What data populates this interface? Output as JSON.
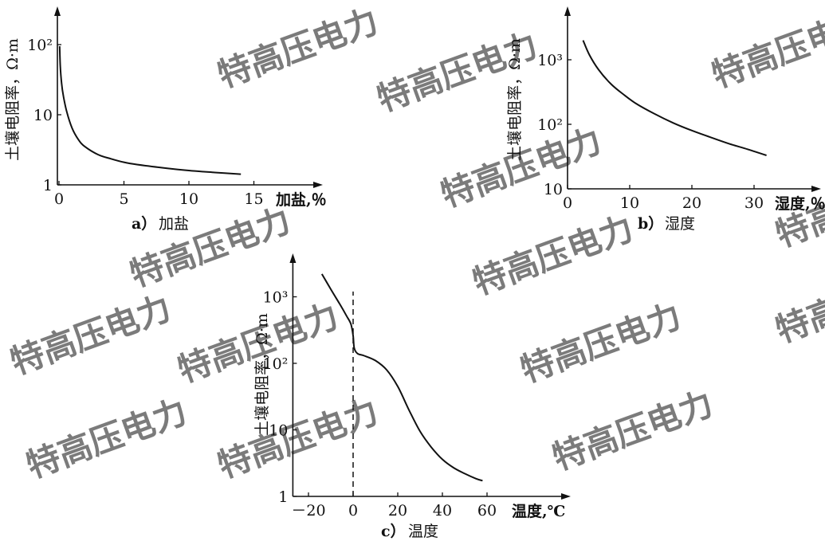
{
  "watermark": "特高压电力",
  "chart_data": [
    {
      "type": "line",
      "caption_letter": "a）",
      "caption_text": "加盐",
      "xlabel": "加盐,％",
      "ylabel": "土壤电阻率，Ω·m",
      "xlim": [
        0,
        15
      ],
      "ylim": [
        1,
        200
      ],
      "yscale": "log",
      "grid": false,
      "xticks": [
        0,
        5,
        10,
        15
      ],
      "xtick_labels": [
        "0",
        "5",
        "10",
        "15"
      ],
      "yticks": [
        1,
        10,
        100
      ],
      "ytick_labels": [
        "1",
        "10",
        "10²"
      ],
      "series": [
        {
          "x": [
            0.05,
            0.1,
            0.2,
            0.35,
            0.6,
            1,
            1.5,
            2,
            3,
            4,
            5,
            6,
            8,
            10,
            12,
            14
          ],
          "y": [
            95,
            50,
            28,
            18,
            11,
            6.5,
            4.4,
            3.5,
            2.7,
            2.35,
            2.1,
            1.95,
            1.75,
            1.6,
            1.5,
            1.42
          ]
        }
      ]
    },
    {
      "type": "line",
      "caption_letter": "b）",
      "caption_text": "湿度",
      "xlabel": "湿度,％",
      "ylabel": "土壤电阻率，Ω·m",
      "xlim": [
        0,
        40
      ],
      "ylim": [
        10,
        2500
      ],
      "yscale": "log",
      "grid": false,
      "xticks": [
        0,
        10,
        20,
        30
      ],
      "xtick_labels": [
        "0",
        "10",
        "20",
        "30"
      ],
      "yticks": [
        10,
        100,
        1000
      ],
      "ytick_labels": [
        "10",
        "10²",
        "10³"
      ],
      "series": [
        {
          "x": [
            2.5,
            3.5,
            5,
            7,
            9,
            11,
            14,
            17,
            20,
            23,
            26,
            29,
            32
          ],
          "y": [
            2000,
            1200,
            700,
            420,
            290,
            210,
            145,
            105,
            80,
            63,
            50,
            41,
            33
          ]
        }
      ]
    },
    {
      "type": "line",
      "caption_letter": "c）",
      "caption_text": "温度",
      "xlabel": "温度,℃",
      "ylabel": "土壤电阻率，Ω·m",
      "xlim": [
        -27,
        92
      ],
      "ylim": [
        1,
        3500
      ],
      "yscale": "log",
      "grid": false,
      "xticks": [
        -20,
        0,
        20,
        40,
        60
      ],
      "xtick_labels": [
        "－20",
        "0",
        "20",
        "40",
        "60"
      ],
      "yticks": [
        1,
        10,
        100,
        1000
      ],
      "ytick_labels": [
        "1",
        "10",
        "10²",
        "10³"
      ],
      "annotations": [
        {
          "type": "vline",
          "x": 0,
          "style": "dashed"
        }
      ],
      "series": [
        {
          "x": [
            -14,
            -10,
            -6,
            -3,
            -1,
            0,
            0.5,
            2,
            5,
            10,
            15,
            20,
            25,
            30,
            35,
            40,
            45,
            50,
            55,
            58
          ],
          "y": [
            2200,
            1300,
            780,
            520,
            390,
            260,
            170,
            140,
            130,
            110,
            80,
            45,
            20,
            9.5,
            5.5,
            3.6,
            2.7,
            2.2,
            1.85,
            1.72
          ]
        }
      ]
    }
  ]
}
